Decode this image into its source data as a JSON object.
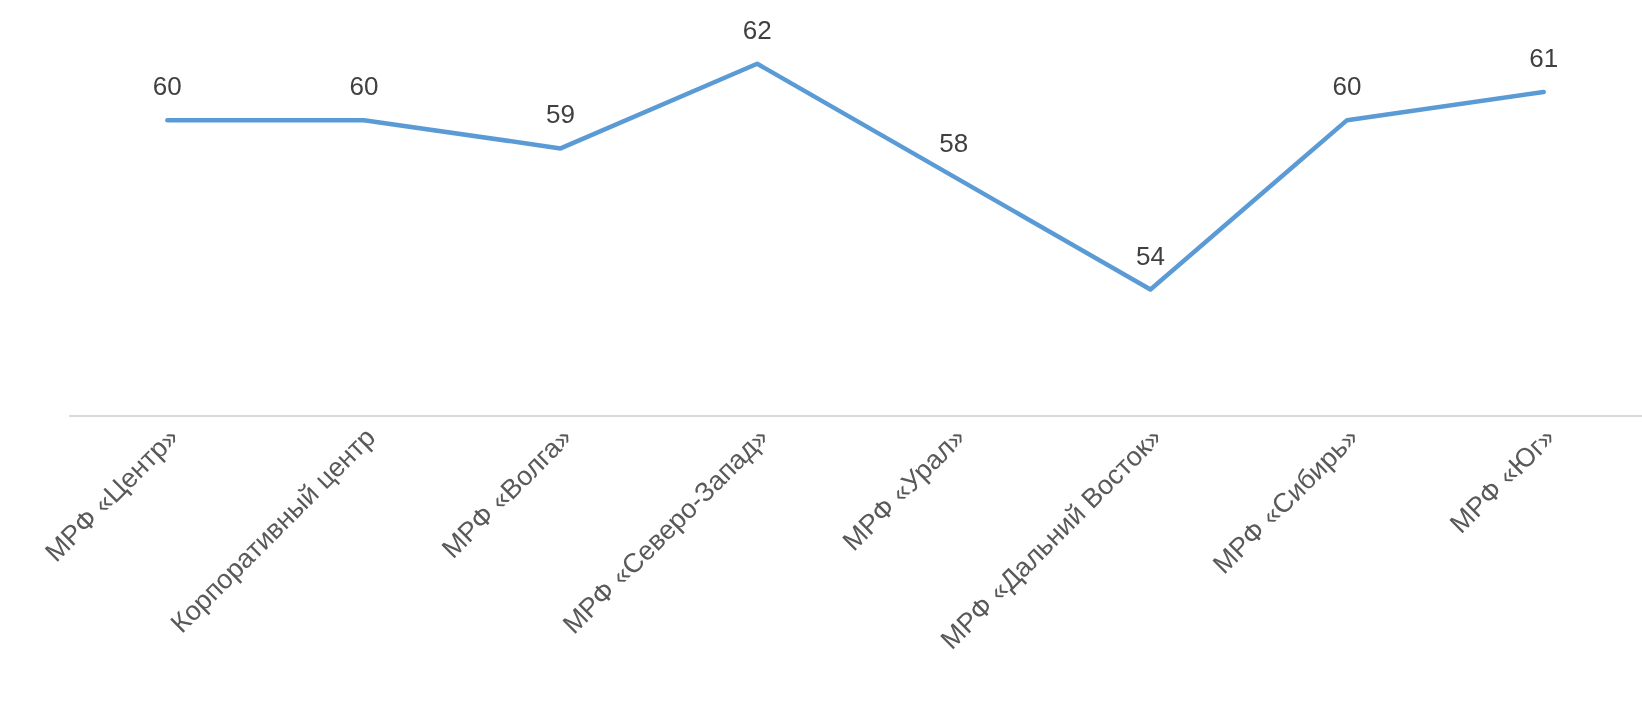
{
  "chart_data": {
    "type": "line",
    "categories": [
      "МРФ «Центр»",
      "Корпоративный центр",
      "МРФ «Волга»",
      "МРФ «Северо-Запад»",
      "МРФ «Урал»",
      "МРФ «Дальний Восток»",
      "МРФ «Сибирь»",
      "МРФ «Юг»"
    ],
    "values": [
      60,
      60,
      59,
      62,
      58,
      54,
      60,
      61
    ],
    "color": "#5b9bd5",
    "data_labels": true,
    "tick_labels": "x"
  }
}
